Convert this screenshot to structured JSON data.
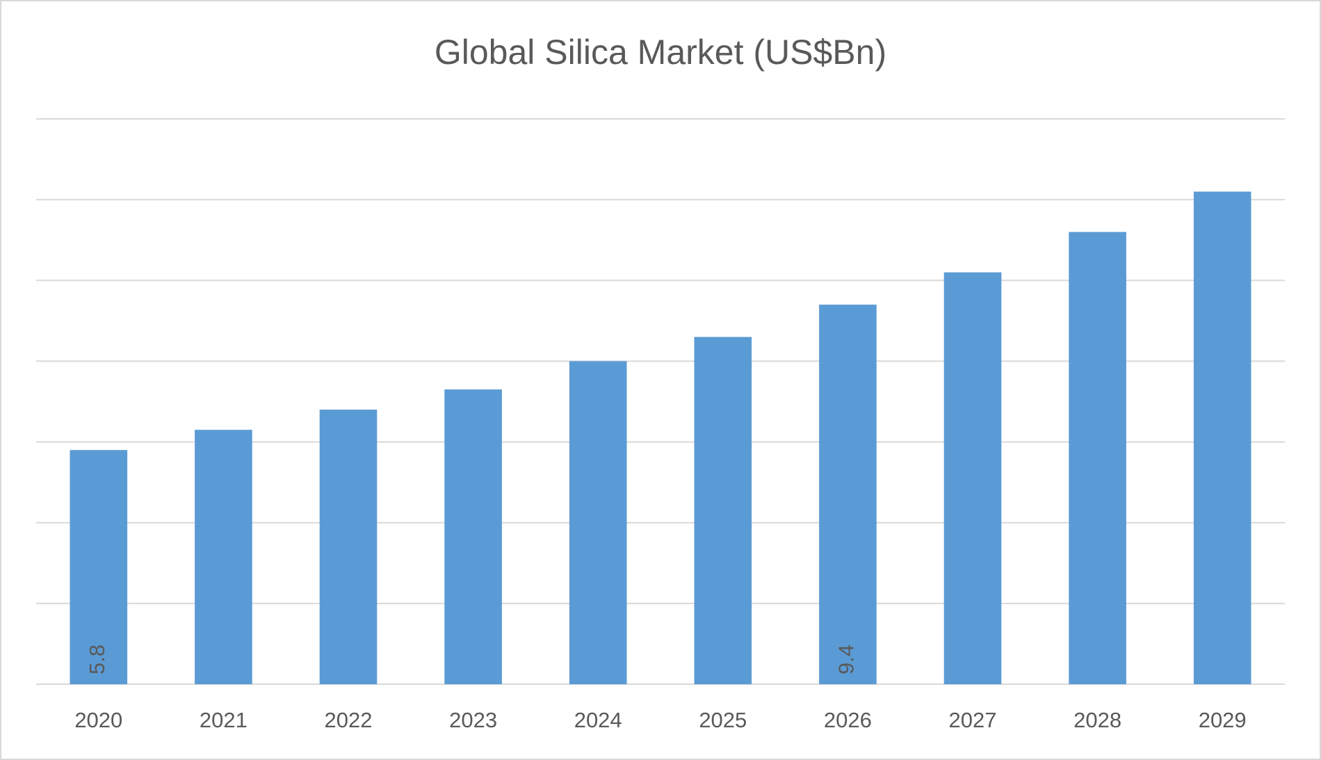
{
  "chart_data": {
    "type": "bar",
    "title": "Global Silica Market (US$Bn)",
    "categories": [
      "2020",
      "2021",
      "2022",
      "2023",
      "2024",
      "2025",
      "2026",
      "2027",
      "2028",
      "2029"
    ],
    "values": [
      5.8,
      6.3,
      6.8,
      7.3,
      8.0,
      8.6,
      9.4,
      10.2,
      11.2,
      12.2
    ],
    "value_labels": [
      "5.8",
      null,
      null,
      null,
      null,
      null,
      "9.4",
      null,
      null,
      null
    ],
    "color": "#5b9bd5",
    "ylim": [
      0,
      14
    ],
    "yticks": [
      0,
      2,
      4,
      6,
      8,
      10,
      12,
      14
    ],
    "show_ytick_labels": false,
    "grid": true
  }
}
